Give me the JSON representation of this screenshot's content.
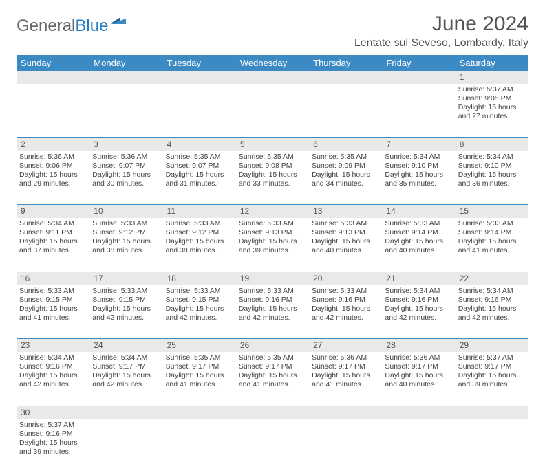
{
  "logo": {
    "general": "General",
    "blue": "Blue"
  },
  "header": {
    "month_title": "June 2024",
    "location": "Lentate sul Seveso, Lombardy, Italy"
  },
  "colors": {
    "header_bg": "#3b8ac4",
    "header_text": "#ffffff",
    "daynum_bg": "#e9e9e9",
    "cell_border": "#3b8ac4",
    "body_text": "#444444"
  },
  "weekdays": [
    "Sunday",
    "Monday",
    "Tuesday",
    "Wednesday",
    "Thursday",
    "Friday",
    "Saturday"
  ],
  "days": {
    "1": {
      "sunrise": "5:37 AM",
      "sunset": "9:05 PM",
      "daylight": "15 hours and 27 minutes."
    },
    "2": {
      "sunrise": "5:36 AM",
      "sunset": "9:06 PM",
      "daylight": "15 hours and 29 minutes."
    },
    "3": {
      "sunrise": "5:36 AM",
      "sunset": "9:07 PM",
      "daylight": "15 hours and 30 minutes."
    },
    "4": {
      "sunrise": "5:35 AM",
      "sunset": "9:07 PM",
      "daylight": "15 hours and 31 minutes."
    },
    "5": {
      "sunrise": "5:35 AM",
      "sunset": "9:08 PM",
      "daylight": "15 hours and 33 minutes."
    },
    "6": {
      "sunrise": "5:35 AM",
      "sunset": "9:09 PM",
      "daylight": "15 hours and 34 minutes."
    },
    "7": {
      "sunrise": "5:34 AM",
      "sunset": "9:10 PM",
      "daylight": "15 hours and 35 minutes."
    },
    "8": {
      "sunrise": "5:34 AM",
      "sunset": "9:10 PM",
      "daylight": "15 hours and 36 minutes."
    },
    "9": {
      "sunrise": "5:34 AM",
      "sunset": "9:11 PM",
      "daylight": "15 hours and 37 minutes."
    },
    "10": {
      "sunrise": "5:33 AM",
      "sunset": "9:12 PM",
      "daylight": "15 hours and 38 minutes."
    },
    "11": {
      "sunrise": "5:33 AM",
      "sunset": "9:12 PM",
      "daylight": "15 hours and 38 minutes."
    },
    "12": {
      "sunrise": "5:33 AM",
      "sunset": "9:13 PM",
      "daylight": "15 hours and 39 minutes."
    },
    "13": {
      "sunrise": "5:33 AM",
      "sunset": "9:13 PM",
      "daylight": "15 hours and 40 minutes."
    },
    "14": {
      "sunrise": "5:33 AM",
      "sunset": "9:14 PM",
      "daylight": "15 hours and 40 minutes."
    },
    "15": {
      "sunrise": "5:33 AM",
      "sunset": "9:14 PM",
      "daylight": "15 hours and 41 minutes."
    },
    "16": {
      "sunrise": "5:33 AM",
      "sunset": "9:15 PM",
      "daylight": "15 hours and 41 minutes."
    },
    "17": {
      "sunrise": "5:33 AM",
      "sunset": "9:15 PM",
      "daylight": "15 hours and 42 minutes."
    },
    "18": {
      "sunrise": "5:33 AM",
      "sunset": "9:15 PM",
      "daylight": "15 hours and 42 minutes."
    },
    "19": {
      "sunrise": "5:33 AM",
      "sunset": "9:16 PM",
      "daylight": "15 hours and 42 minutes."
    },
    "20": {
      "sunrise": "5:33 AM",
      "sunset": "9:16 PM",
      "daylight": "15 hours and 42 minutes."
    },
    "21": {
      "sunrise": "5:34 AM",
      "sunset": "9:16 PM",
      "daylight": "15 hours and 42 minutes."
    },
    "22": {
      "sunrise": "5:34 AM",
      "sunset": "9:16 PM",
      "daylight": "15 hours and 42 minutes."
    },
    "23": {
      "sunrise": "5:34 AM",
      "sunset": "9:16 PM",
      "daylight": "15 hours and 42 minutes."
    },
    "24": {
      "sunrise": "5:34 AM",
      "sunset": "9:17 PM",
      "daylight": "15 hours and 42 minutes."
    },
    "25": {
      "sunrise": "5:35 AM",
      "sunset": "9:17 PM",
      "daylight": "15 hours and 41 minutes."
    },
    "26": {
      "sunrise": "5:35 AM",
      "sunset": "9:17 PM",
      "daylight": "15 hours and 41 minutes."
    },
    "27": {
      "sunrise": "5:36 AM",
      "sunset": "9:17 PM",
      "daylight": "15 hours and 41 minutes."
    },
    "28": {
      "sunrise": "5:36 AM",
      "sunset": "9:17 PM",
      "daylight": "15 hours and 40 minutes."
    },
    "29": {
      "sunrise": "5:37 AM",
      "sunset": "9:17 PM",
      "daylight": "15 hours and 39 minutes."
    },
    "30": {
      "sunrise": "5:37 AM",
      "sunset": "9:16 PM",
      "daylight": "15 hours and 39 minutes."
    }
  },
  "layout": {
    "weeks": [
      [
        null,
        null,
        null,
        null,
        null,
        null,
        "1"
      ],
      [
        "2",
        "3",
        "4",
        "5",
        "6",
        "7",
        "8"
      ],
      [
        "9",
        "10",
        "11",
        "12",
        "13",
        "14",
        "15"
      ],
      [
        "16",
        "17",
        "18",
        "19",
        "20",
        "21",
        "22"
      ],
      [
        "23",
        "24",
        "25",
        "26",
        "27",
        "28",
        "29"
      ],
      [
        "30",
        null,
        null,
        null,
        null,
        null,
        null
      ]
    ]
  },
  "labels": {
    "sunrise_prefix": "Sunrise: ",
    "sunset_prefix": "Sunset: ",
    "daylight_prefix": "Daylight: "
  }
}
